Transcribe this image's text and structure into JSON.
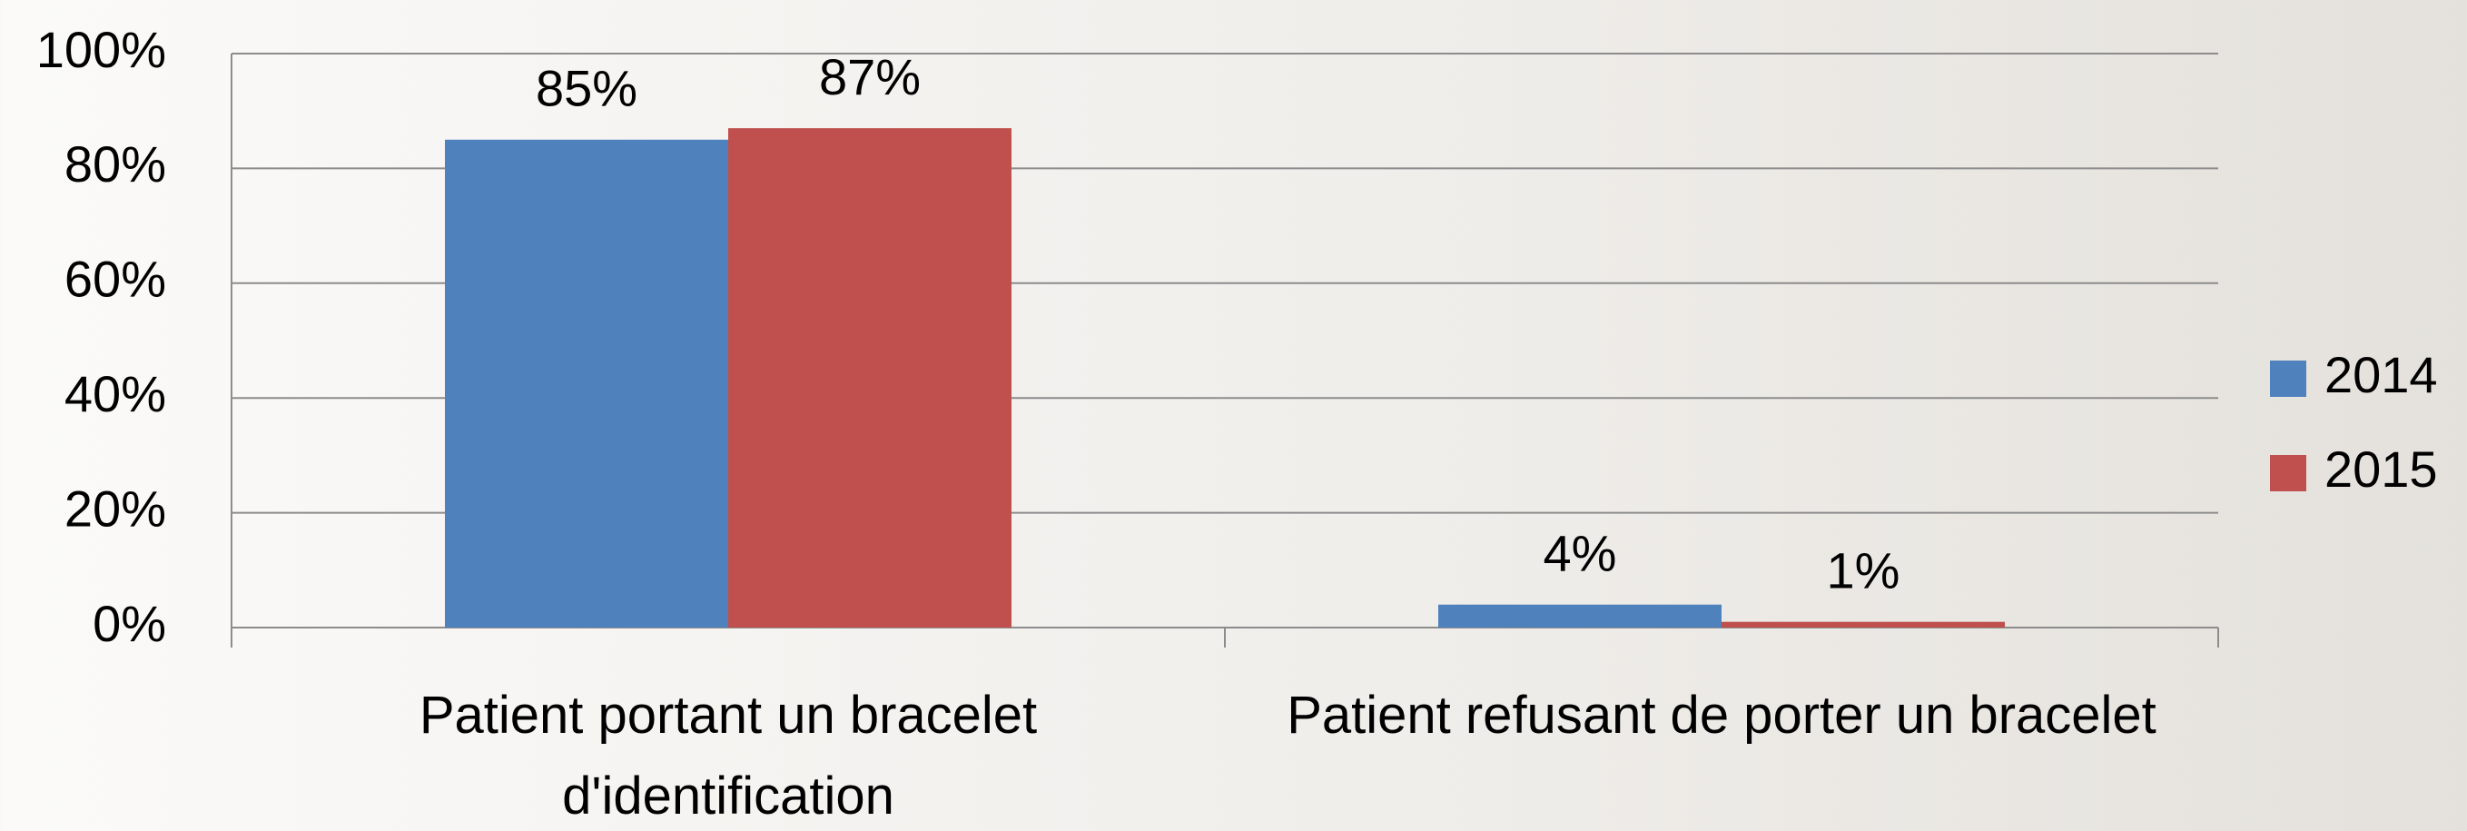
{
  "chart_data": {
    "type": "bar",
    "categories": [
      "Patient portant un bracelet d'identification",
      "Patient refusant de porter un bracelet"
    ],
    "series": [
      {
        "name": "2014",
        "color": "#4f81bd",
        "values": [
          85,
          4
        ],
        "value_labels": [
          "85%",
          "4%"
        ]
      },
      {
        "name": "2015",
        "color": "#c0504d",
        "values": [
          87,
          1
        ],
        "value_labels": [
          "87%",
          "1%"
        ]
      }
    ],
    "ylim": [
      0,
      100
    ],
    "yticks": [
      {
        "value": 0,
        "label": "0%"
      },
      {
        "value": 20,
        "label": "20%"
      },
      {
        "value": 40,
        "label": "40%"
      },
      {
        "value": 60,
        "label": "60%"
      },
      {
        "value": 80,
        "label": "80%"
      },
      {
        "value": 100,
        "label": "100%"
      }
    ],
    "grid": true,
    "legend": "right"
  }
}
